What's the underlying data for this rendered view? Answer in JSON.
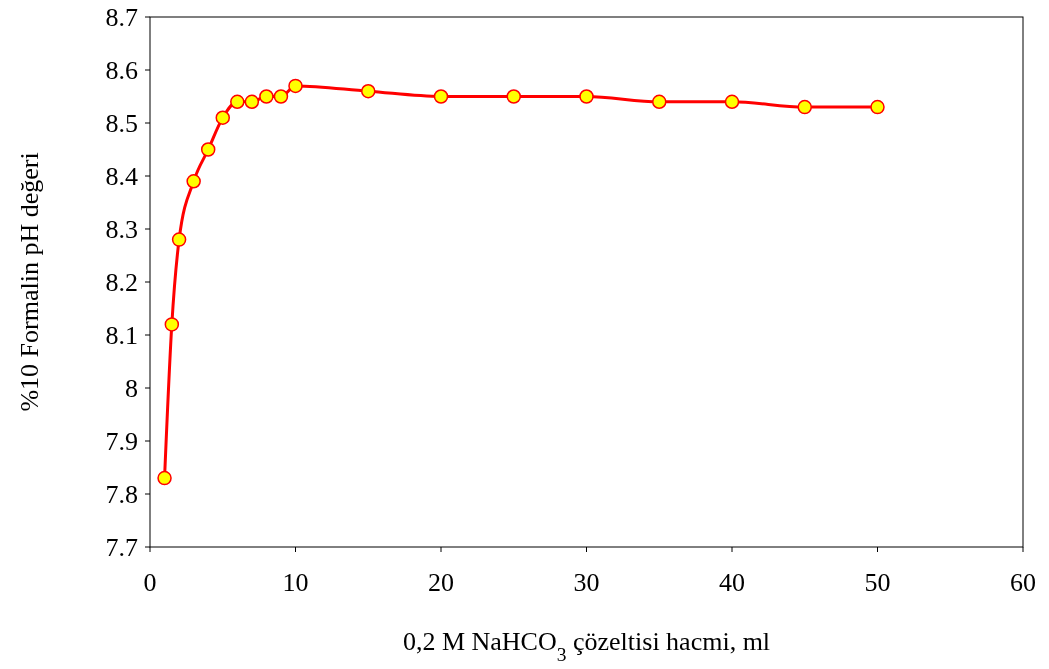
{
  "chart_data": {
    "type": "line",
    "xlabel": "0,2 M NaHCO$_{3}$ çözeltisi hacmi, ml",
    "ylabel": "%10 Formalin pH değeri",
    "x": [
      1,
      1.5,
      2,
      3,
      4,
      5,
      6,
      7,
      8,
      9,
      10,
      15,
      20,
      25,
      30,
      35,
      40,
      45,
      50
    ],
    "series": [
      {
        "color": "#ff0000",
        "values": [
          7.83,
          8.12,
          8.28,
          8.39,
          8.45,
          8.51,
          8.54,
          8.54,
          8.55,
          8.55,
          8.57,
          8.56,
          8.55,
          8.55,
          8.55,
          8.54,
          8.54,
          8.53,
          8.53
        ]
      }
    ],
    "xlim": [
      0,
      60
    ],
    "xticks": [
      0,
      10,
      20,
      30,
      40,
      50,
      60
    ],
    "ylim": [
      7.7,
      8.7
    ],
    "yticks": [
      7.7,
      7.8,
      7.9,
      8,
      8.1,
      8.2,
      8.3,
      8.4,
      8.5,
      8.6,
      8.7
    ],
    "grid": false,
    "marker": "circle",
    "line_style": "solid"
  }
}
